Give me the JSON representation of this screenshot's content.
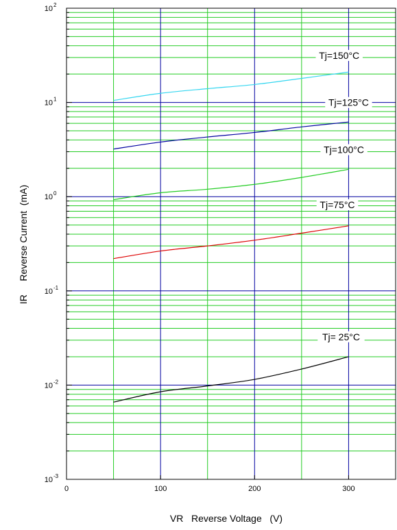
{
  "chart_data": {
    "type": "line",
    "xlabel": "VR   Reverse Voltage   (V)",
    "ylabel": "IR     Reverse Current  (mA)",
    "xlim": [
      0,
      350
    ],
    "ylim": [
      0.001,
      100
    ],
    "y_scale": "log",
    "grid": true,
    "x_ticks": [
      "0",
      "100",
      "200",
      "300"
    ],
    "x_tick_values": [
      0,
      100,
      200,
      300
    ],
    "y_ticks": [
      {
        "base": "10",
        "exp": "-3",
        "value": 0.001
      },
      {
        "base": "10",
        "exp": "-2",
        "value": 0.01
      },
      {
        "base": "10",
        "exp": "-1",
        "value": 0.1
      },
      {
        "base": "10",
        "exp": "0",
        "value": 1
      },
      {
        "base": "10",
        "exp": "1",
        "value": 10
      },
      {
        "base": "10",
        "exp": "2",
        "value": 100
      }
    ],
    "series": [
      {
        "name": "Tj=150°C",
        "color": "#33d6f0",
        "label_at": [
          290,
          30
        ],
        "x": [
          50,
          100,
          150,
          200,
          250,
          300
        ],
        "y": [
          10.5,
          12.5,
          14,
          15.5,
          18,
          21
        ]
      },
      {
        "name": "Tj=125°C",
        "color": "#0000a0",
        "label_at": [
          300,
          9.5
        ],
        "x": [
          50,
          100,
          150,
          200,
          250,
          300
        ],
        "y": [
          3.2,
          3.8,
          4.3,
          4.8,
          5.5,
          6.2
        ]
      },
      {
        "name": "Tj=100°C",
        "color": "#22cc22",
        "label_at": [
          295,
          3.0
        ],
        "x": [
          50,
          100,
          150,
          200,
          250,
          300
        ],
        "y": [
          0.93,
          1.1,
          1.2,
          1.35,
          1.6,
          1.95
        ]
      },
      {
        "name": "Tj=75°C",
        "color": "#dd0000",
        "label_at": [
          288,
          0.78
        ],
        "x": [
          50,
          100,
          150,
          200,
          250,
          300
        ],
        "y": [
          0.22,
          0.265,
          0.3,
          0.345,
          0.41,
          0.49
        ]
      },
      {
        "name": "Tj= 25°C",
        "color": "#000000",
        "label_at": [
          292,
          0.031
        ],
        "x": [
          50,
          100,
          150,
          200,
          250,
          300
        ],
        "y": [
          0.0066,
          0.0085,
          0.0098,
          0.0115,
          0.0148,
          0.02
        ]
      }
    ]
  },
  "colors": {
    "major_grid": "#0000a0",
    "minor_grid": "#22cc22",
    "frame": "#000000"
  }
}
